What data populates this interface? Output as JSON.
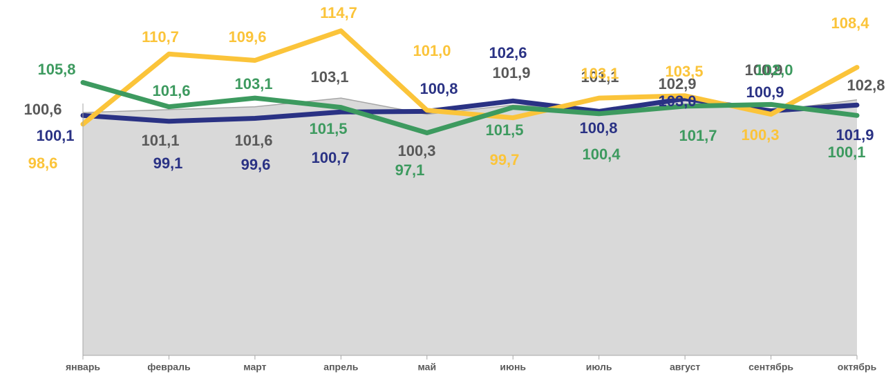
{
  "chart_data": {
    "type": "line",
    "categories": [
      "январь",
      "февраль",
      "март",
      "апрель",
      "май",
      "июнь",
      "июль",
      "август",
      "сентябрь",
      "октябрь"
    ],
    "ylim": [
      58.7,
      118
    ],
    "series": [
      {
        "kind": "area",
        "color": "#d9d9d9",
        "label_color": "#595959",
        "values": [
          100.6,
          101.1,
          101.6,
          103.1,
          100.3,
          101.9,
          101.1,
          102.9,
          100.9,
          102.8
        ],
        "value_labels": [
          "100,6",
          "101,1",
          "101,6",
          "103,1",
          "100,3",
          "101,9",
          "101,1",
          "102,9",
          "100,9",
          "102,8"
        ]
      },
      {
        "kind": "line",
        "color": "#2a3284",
        "label_color": "#2a3284",
        "values": [
          100.1,
          99.1,
          99.6,
          100.7,
          100.8,
          102.6,
          100.8,
          103.0,
          100.9,
          101.9
        ],
        "value_labels": [
          "100,1",
          "99,1",
          "99,6",
          "100,7",
          "100,8",
          "102,6",
          "100,8",
          "103,0",
          "100,9",
          "101,9"
        ]
      },
      {
        "kind": "line",
        "color": "#fbc43a",
        "label_color": "#fbc43a",
        "values": [
          98.6,
          110.7,
          109.6,
          114.7,
          101.0,
          99.7,
          103.1,
          103.5,
          100.3,
          108.4
        ],
        "value_labels": [
          "98,6",
          "110,7",
          "109,6",
          "114,7",
          "101,0",
          "99,7",
          "103,1",
          "103,5",
          "100,3",
          "108,4"
        ]
      },
      {
        "kind": "line",
        "color": "#3d9a5f",
        "label_color": "#3d9a5f",
        "values": [
          105.8,
          101.6,
          103.1,
          101.5,
          97.1,
          101.5,
          100.4,
          101.7,
          102.0,
          100.1
        ],
        "value_labels": [
          "105,8",
          "101,6",
          "103,1",
          "101,5",
          "97,1",
          "101,5",
          "100,4",
          "101,7",
          "102,0",
          "100,1"
        ]
      }
    ]
  }
}
